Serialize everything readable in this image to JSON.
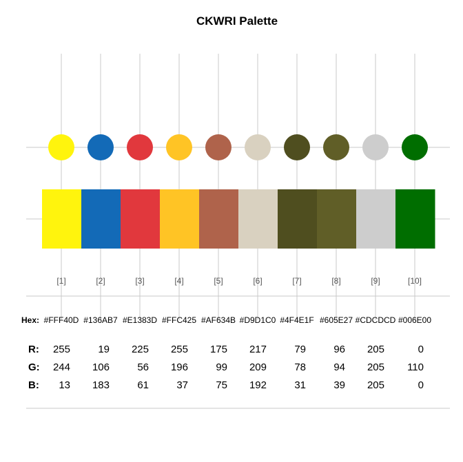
{
  "chart_data": {
    "type": "table",
    "title": "CKWRI Palette",
    "hex_label": "Hex:",
    "channel_labels": [
      "R:",
      "G:",
      "B:"
    ],
    "colors": [
      {
        "index": "[1]",
        "hex": "#FFF40D",
        "r": 255,
        "g": 244,
        "b": 13
      },
      {
        "index": "[2]",
        "hex": "#136AB7",
        "r": 19,
        "g": 106,
        "b": 183
      },
      {
        "index": "[3]",
        "hex": "#E1383D",
        "r": 225,
        "g": 56,
        "b": 61
      },
      {
        "index": "[4]",
        "hex": "#FFC425",
        "r": 255,
        "g": 196,
        "b": 37
      },
      {
        "index": "[5]",
        "hex": "#AF634B",
        "r": 175,
        "g": 99,
        "b": 75
      },
      {
        "index": "[6]",
        "hex": "#D9D1C0",
        "r": 217,
        "g": 209,
        "b": 192
      },
      {
        "index": "[7]",
        "hex": "#4F4E1F",
        "r": 79,
        "g": 78,
        "b": 31
      },
      {
        "index": "[8]",
        "hex": "#605E27",
        "r": 96,
        "g": 94,
        "b": 39
      },
      {
        "index": "[9]",
        "hex": "#CDCDCD",
        "r": 205,
        "g": 205,
        "b": 205
      },
      {
        "index": "[10]",
        "hex": "#006E00",
        "r": 0,
        "g": 110,
        "b": 0
      }
    ],
    "grid": true
  }
}
